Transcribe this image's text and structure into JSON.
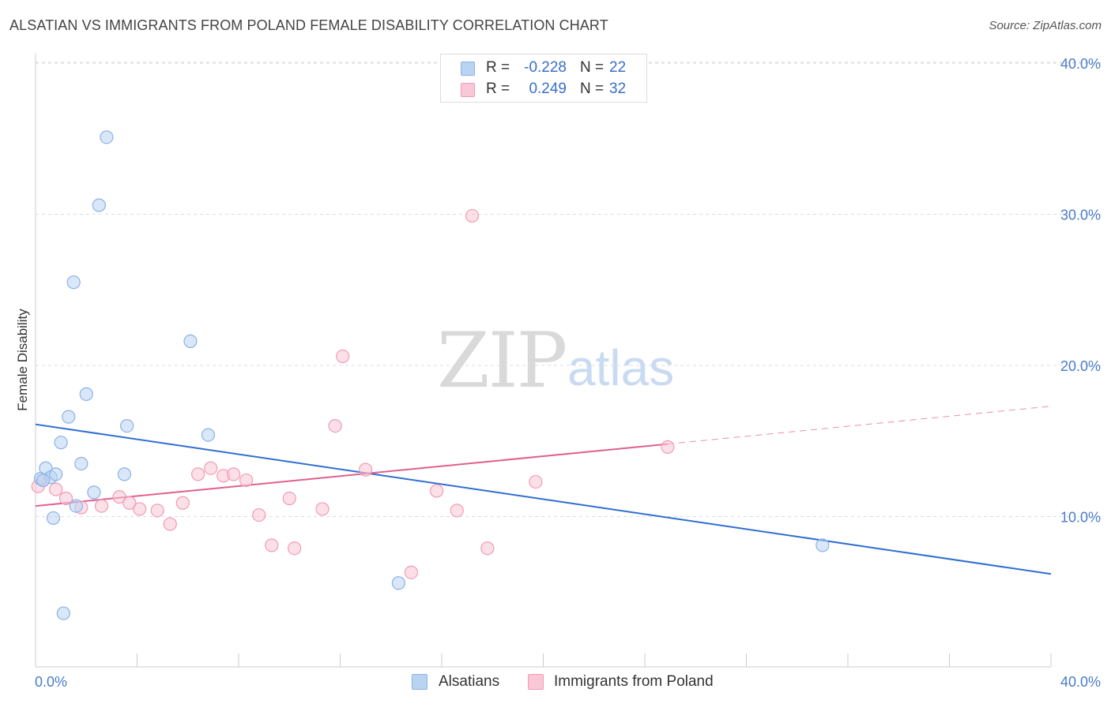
{
  "title": "ALSATIAN VS IMMIGRANTS FROM POLAND FEMALE DISABILITY CORRELATION CHART",
  "source": "Source: ZipAtlas.com",
  "watermark": {
    "zip": "ZIP",
    "atlas": "atlas"
  },
  "legend": {
    "rows": [
      {
        "r_label": "R =",
        "r_value": "-0.228",
        "n_label": "N =",
        "n_value": "22"
      },
      {
        "r_label": "R =",
        "r_value": "0.249",
        "n_label": "N =",
        "n_value": "32"
      }
    ]
  },
  "bottom_legend": [
    "Alsatians",
    "Immigrants from Poland"
  ],
  "colors": {
    "alsatian_fill": "#b9d3f3",
    "alsatian_stroke": "#8ab2e6",
    "alsatian_line": "#2f6fd0",
    "poland_fill": "#f9c7d6",
    "poland_stroke": "#f19bb6",
    "poland_line": "#e0608e",
    "tick_label": "#4a7cc9",
    "grid": "#dcdcdc"
  },
  "chart_data": {
    "type": "scatter",
    "title": "ALSATIAN VS IMMIGRANTS FROM POLAND FEMALE DISABILITY CORRELATION CHART",
    "xlabel": "",
    "ylabel": "Female Disability",
    "xlim": [
      0,
      40
    ],
    "ylim": [
      0,
      42
    ],
    "x_tick_labels": [
      "0.0%",
      "40.0%"
    ],
    "y_ticks": [
      10,
      20,
      30,
      40
    ],
    "y_tick_labels": [
      "10.0%",
      "20.0%",
      "30.0%",
      "40.0%"
    ],
    "grid": true,
    "legend_position": "top-center",
    "series": [
      {
        "name": "Alsatians",
        "r": -0.228,
        "n": 22,
        "points": [
          [
            0.2,
            12.5
          ],
          [
            0.4,
            13.2
          ],
          [
            0.6,
            12.6
          ],
          [
            0.8,
            12.8
          ],
          [
            0.7,
            9.9
          ],
          [
            1.0,
            14.9
          ],
          [
            1.1,
            3.6
          ],
          [
            1.3,
            16.6
          ],
          [
            1.5,
            25.5
          ],
          [
            1.6,
            10.7
          ],
          [
            1.8,
            13.5
          ],
          [
            2.0,
            18.1
          ],
          [
            2.3,
            11.6
          ],
          [
            2.5,
            30.6
          ],
          [
            2.8,
            35.1
          ],
          [
            3.5,
            12.8
          ],
          [
            3.6,
            16.0
          ],
          [
            6.1,
            21.6
          ],
          [
            6.8,
            15.4
          ],
          [
            14.3,
            5.6
          ],
          [
            31.0,
            8.1
          ],
          [
            0.3,
            12.4
          ]
        ],
        "trend": [
          [
            0,
            16.1
          ],
          [
            40,
            6.2
          ]
        ]
      },
      {
        "name": "Immigrants from Poland",
        "r": 0.249,
        "n": 32,
        "points": [
          [
            0.1,
            12.0
          ],
          [
            0.3,
            12.4
          ],
          [
            0.8,
            11.8
          ],
          [
            1.2,
            11.2
          ],
          [
            1.8,
            10.6
          ],
          [
            2.6,
            10.7
          ],
          [
            3.3,
            11.3
          ],
          [
            3.7,
            10.9
          ],
          [
            4.1,
            10.5
          ],
          [
            4.8,
            10.4
          ],
          [
            5.3,
            9.5
          ],
          [
            5.8,
            10.9
          ],
          [
            6.4,
            12.8
          ],
          [
            6.9,
            13.2
          ],
          [
            7.4,
            12.7
          ],
          [
            7.8,
            12.8
          ],
          [
            8.3,
            12.4
          ],
          [
            8.8,
            10.1
          ],
          [
            9.3,
            8.1
          ],
          [
            10.0,
            11.2
          ],
          [
            10.2,
            7.9
          ],
          [
            11.3,
            10.5
          ],
          [
            11.8,
            16.0
          ],
          [
            12.1,
            20.6
          ],
          [
            13.0,
            13.1
          ],
          [
            14.8,
            6.3
          ],
          [
            15.8,
            11.7
          ],
          [
            16.6,
            10.4
          ],
          [
            17.2,
            29.9
          ],
          [
            17.8,
            7.9
          ],
          [
            19.7,
            12.3
          ],
          [
            24.9,
            14.6
          ]
        ],
        "trend": [
          [
            0,
            10.7
          ],
          [
            24.9,
            14.8
          ]
        ],
        "trend_extrapolated": [
          [
            24.9,
            14.8
          ],
          [
            40,
            17.3
          ]
        ]
      }
    ]
  }
}
